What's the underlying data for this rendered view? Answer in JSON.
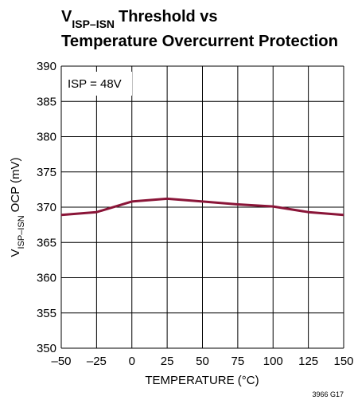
{
  "chart_data": {
    "type": "line",
    "title_parts": [
      "V",
      "ISP–ISN",
      "Threshold vs",
      "Temperature Overcurrent Protection"
    ],
    "y_label_parts": [
      "V",
      "ISP–ISN",
      "OCP (mV)"
    ],
    "x_label": "TEMPERATURE (°C)",
    "annotation": "ISP = 48V",
    "footnote": "3966 G17",
    "x": [
      -50,
      -25,
      0,
      25,
      50,
      75,
      100,
      125,
      150
    ],
    "series": [
      {
        "name": "ISP = 48V",
        "color": "#8a1538",
        "values": [
          368.9,
          369.3,
          370.8,
          371.2,
          370.8,
          370.4,
          370.1,
          369.3,
          368.9
        ]
      }
    ],
    "xlim": [
      -50,
      150
    ],
    "xticks": [
      {
        "value": -50,
        "label": "–50"
      },
      {
        "value": -25,
        "label": "–25"
      },
      0,
      25,
      50,
      75,
      100,
      125,
      150
    ],
    "ylim": [
      350,
      390
    ],
    "yticks": [
      350,
      355,
      360,
      365,
      370,
      375,
      380,
      385,
      390
    ],
    "grid": true
  }
}
